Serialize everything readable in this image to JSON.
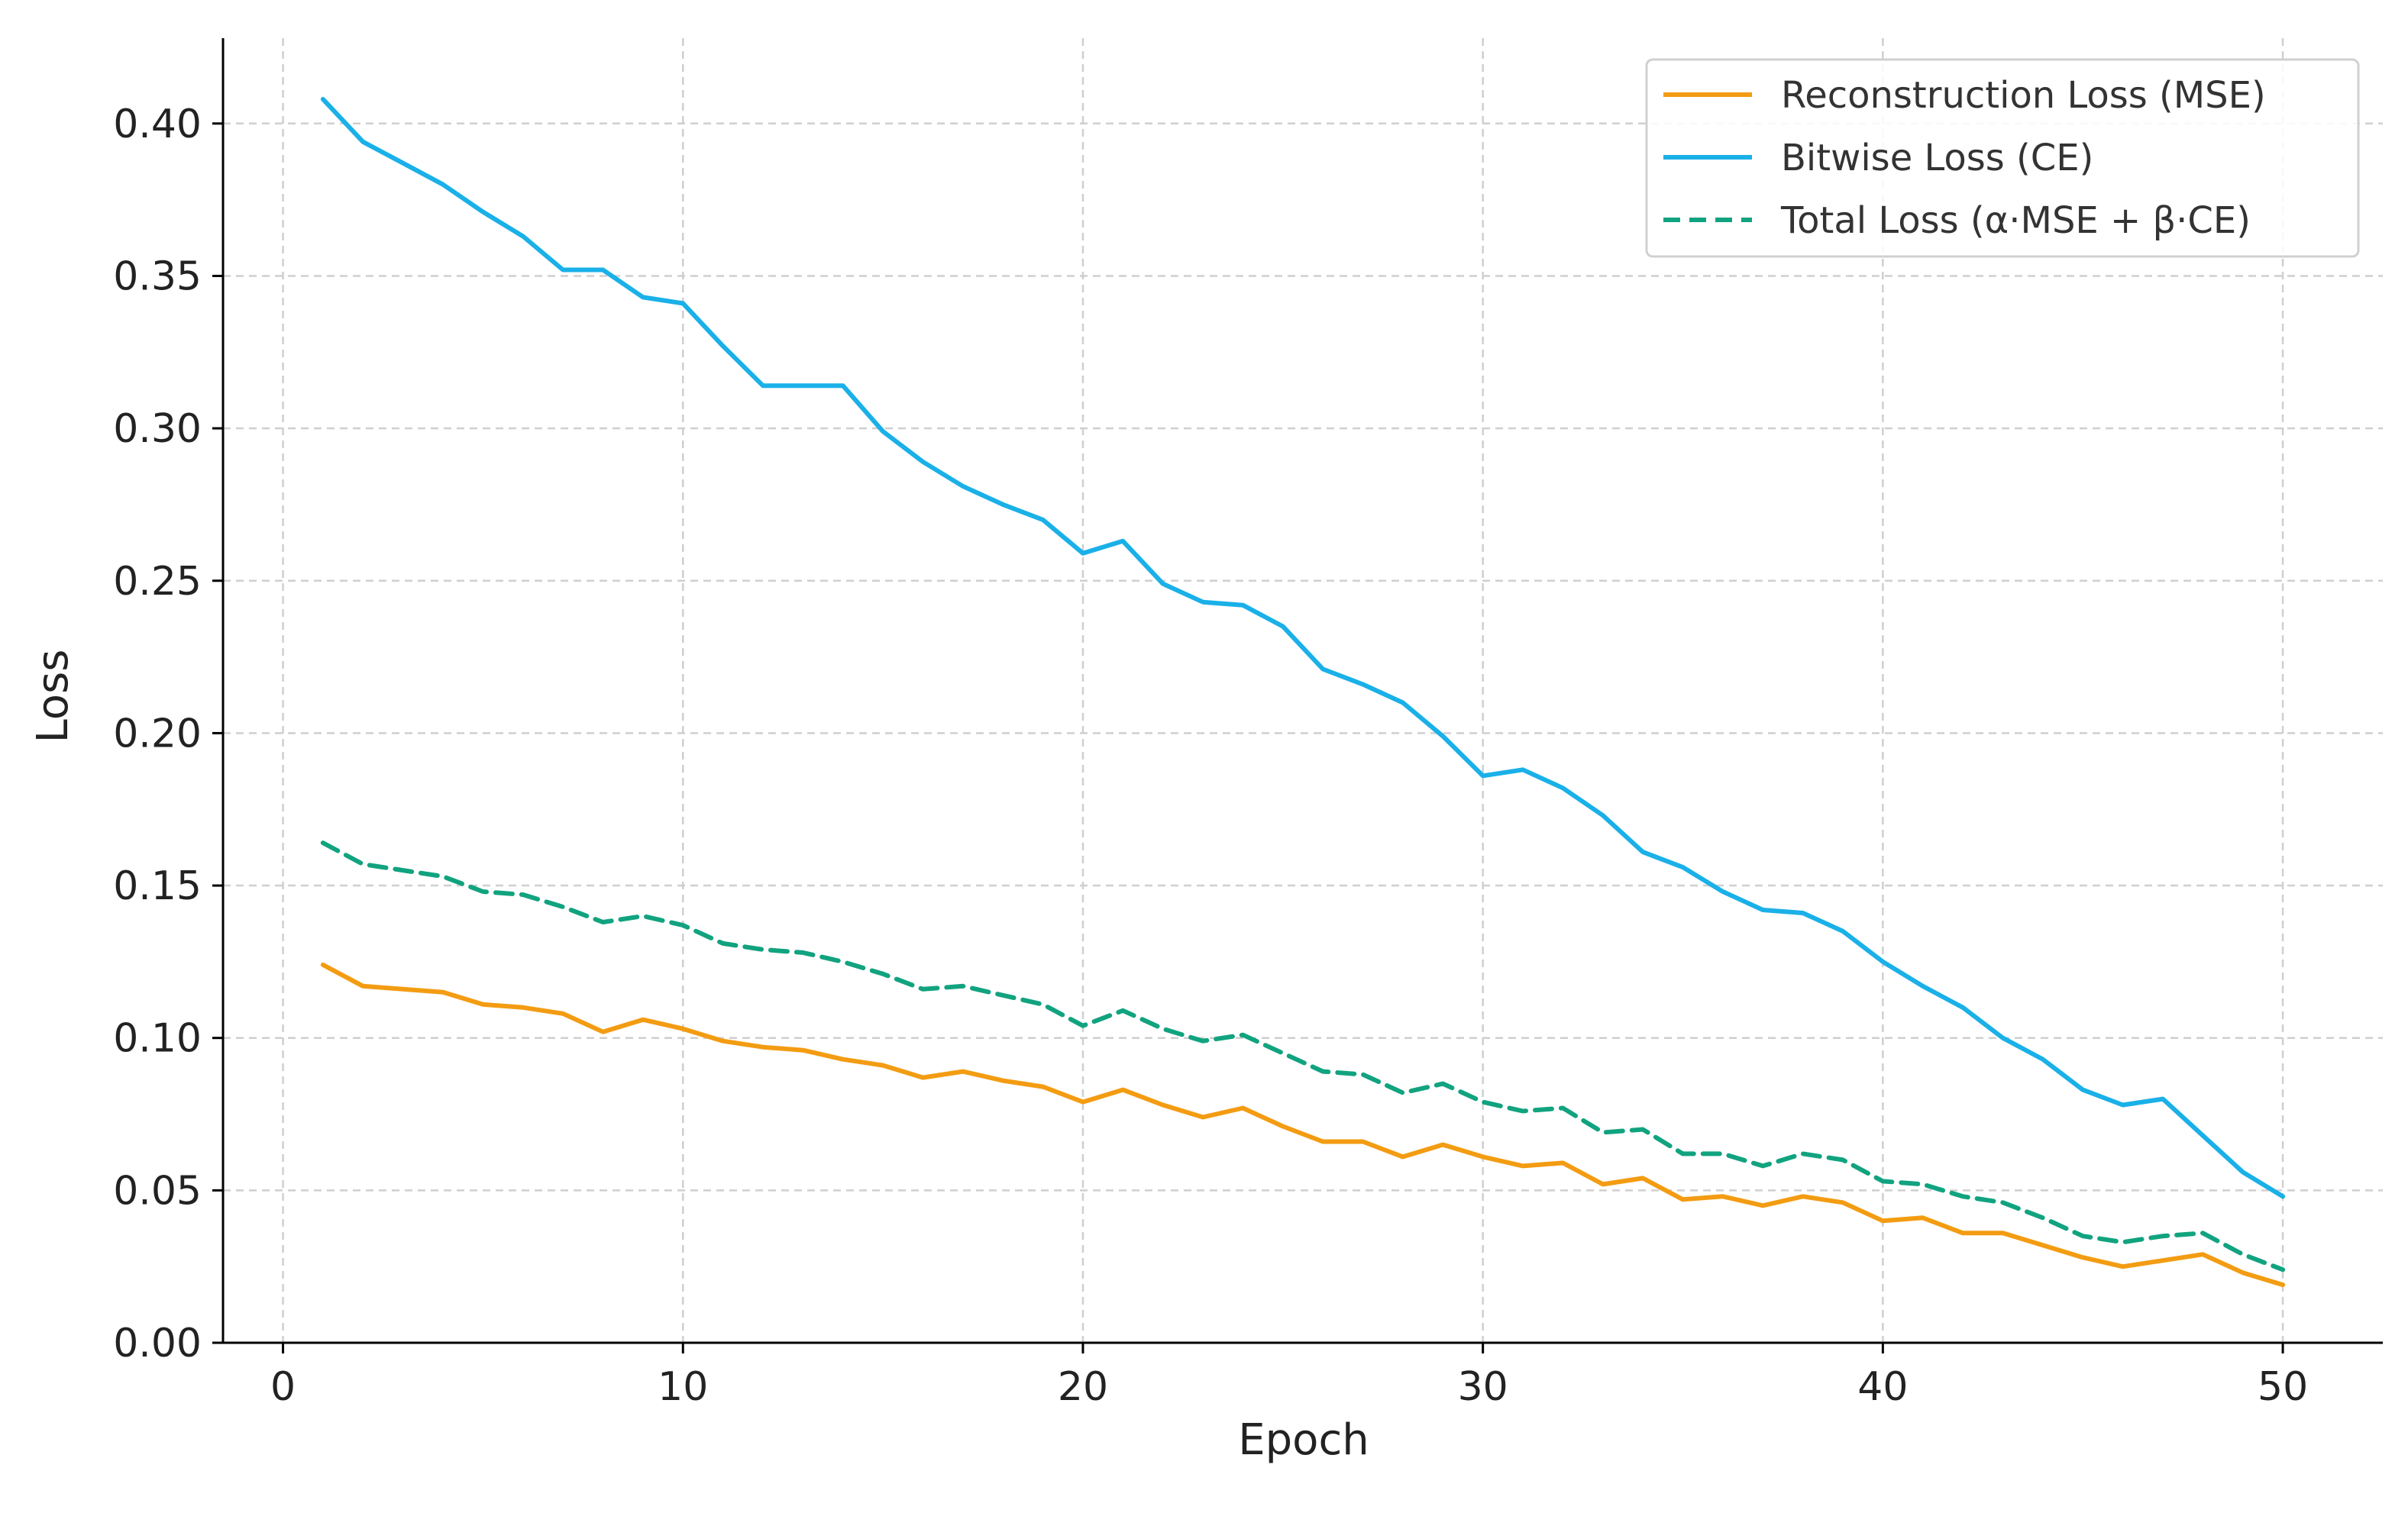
{
  "chart_data": {
    "type": "line",
    "title": "",
    "xlabel": "Epoch",
    "ylabel": "Loss",
    "xlim": [
      -1.5,
      52.5
    ],
    "ylim": [
      0,
      0.428
    ],
    "grid": true,
    "legend_position": "top-right",
    "x_ticks": [
      0,
      10,
      20,
      30,
      40,
      50
    ],
    "x_tick_labels": [
      "0",
      "10",
      "20",
      "30",
      "40",
      "50"
    ],
    "y_ticks": [
      0,
      0.05,
      0.1,
      0.15,
      0.2,
      0.25,
      0.3,
      0.35,
      0.4
    ],
    "y_tick_labels": [
      "0.00",
      "0.05",
      "0.10",
      "0.15",
      "0.20",
      "0.25",
      "0.30",
      "0.35",
      "0.40"
    ],
    "x": [
      1,
      2,
      3,
      4,
      5,
      6,
      7,
      8,
      9,
      10,
      11,
      12,
      13,
      14,
      15,
      16,
      17,
      18,
      19,
      20,
      21,
      22,
      23,
      24,
      25,
      26,
      27,
      28,
      29,
      30,
      31,
      32,
      33,
      34,
      35,
      36,
      37,
      38,
      39,
      40,
      41,
      42,
      43,
      44,
      45,
      46,
      47,
      48,
      49,
      50
    ],
    "series": [
      {
        "name": "Reconstruction Loss (MSE)",
        "color": "#f39c12",
        "dash": "solid",
        "values": [
          0.124,
          0.117,
          0.116,
          0.115,
          0.111,
          0.11,
          0.108,
          0.102,
          0.106,
          0.103,
          0.099,
          0.097,
          0.096,
          0.093,
          0.091,
          0.087,
          0.089,
          0.086,
          0.084,
          0.079,
          0.083,
          0.078,
          0.074,
          0.077,
          0.071,
          0.066,
          0.066,
          0.061,
          0.065,
          0.061,
          0.058,
          0.059,
          0.052,
          0.054,
          0.047,
          0.048,
          0.045,
          0.048,
          0.046,
          0.04,
          0.041,
          0.036,
          0.036,
          0.032,
          0.028,
          0.025,
          0.027,
          0.029,
          0.023,
          0.019
        ]
      },
      {
        "name": "Bitwise Loss (CE)",
        "color": "#1ab0e8",
        "dash": "solid",
        "values": [
          0.408,
          0.394,
          0.387,
          0.38,
          0.371,
          0.363,
          0.352,
          0.352,
          0.343,
          0.341,
          0.327,
          0.314,
          0.314,
          0.314,
          0.299,
          0.289,
          0.281,
          0.275,
          0.27,
          0.259,
          0.263,
          0.249,
          0.243,
          0.242,
          0.235,
          0.221,
          0.216,
          0.21,
          0.199,
          0.186,
          0.188,
          0.182,
          0.173,
          0.161,
          0.156,
          0.148,
          0.142,
          0.141,
          0.135,
          0.125,
          0.117,
          0.11,
          0.1,
          0.093,
          0.083,
          0.078,
          0.08,
          0.068,
          0.056,
          0.048
        ]
      },
      {
        "name": "Total Loss (α·MSE + β·CE)",
        "color": "#11a37f",
        "dash": "dashed",
        "values": [
          0.164,
          0.157,
          0.155,
          0.153,
          0.148,
          0.147,
          0.143,
          0.138,
          0.14,
          0.137,
          0.131,
          0.129,
          0.128,
          0.125,
          0.121,
          0.116,
          0.117,
          0.114,
          0.111,
          0.104,
          0.109,
          0.103,
          0.099,
          0.101,
          0.095,
          0.089,
          0.088,
          0.082,
          0.085,
          0.079,
          0.076,
          0.077,
          0.069,
          0.07,
          0.062,
          0.062,
          0.058,
          0.062,
          0.06,
          0.053,
          0.052,
          0.048,
          0.046,
          0.041,
          0.035,
          0.033,
          0.035,
          0.036,
          0.029,
          0.024
        ]
      }
    ]
  }
}
